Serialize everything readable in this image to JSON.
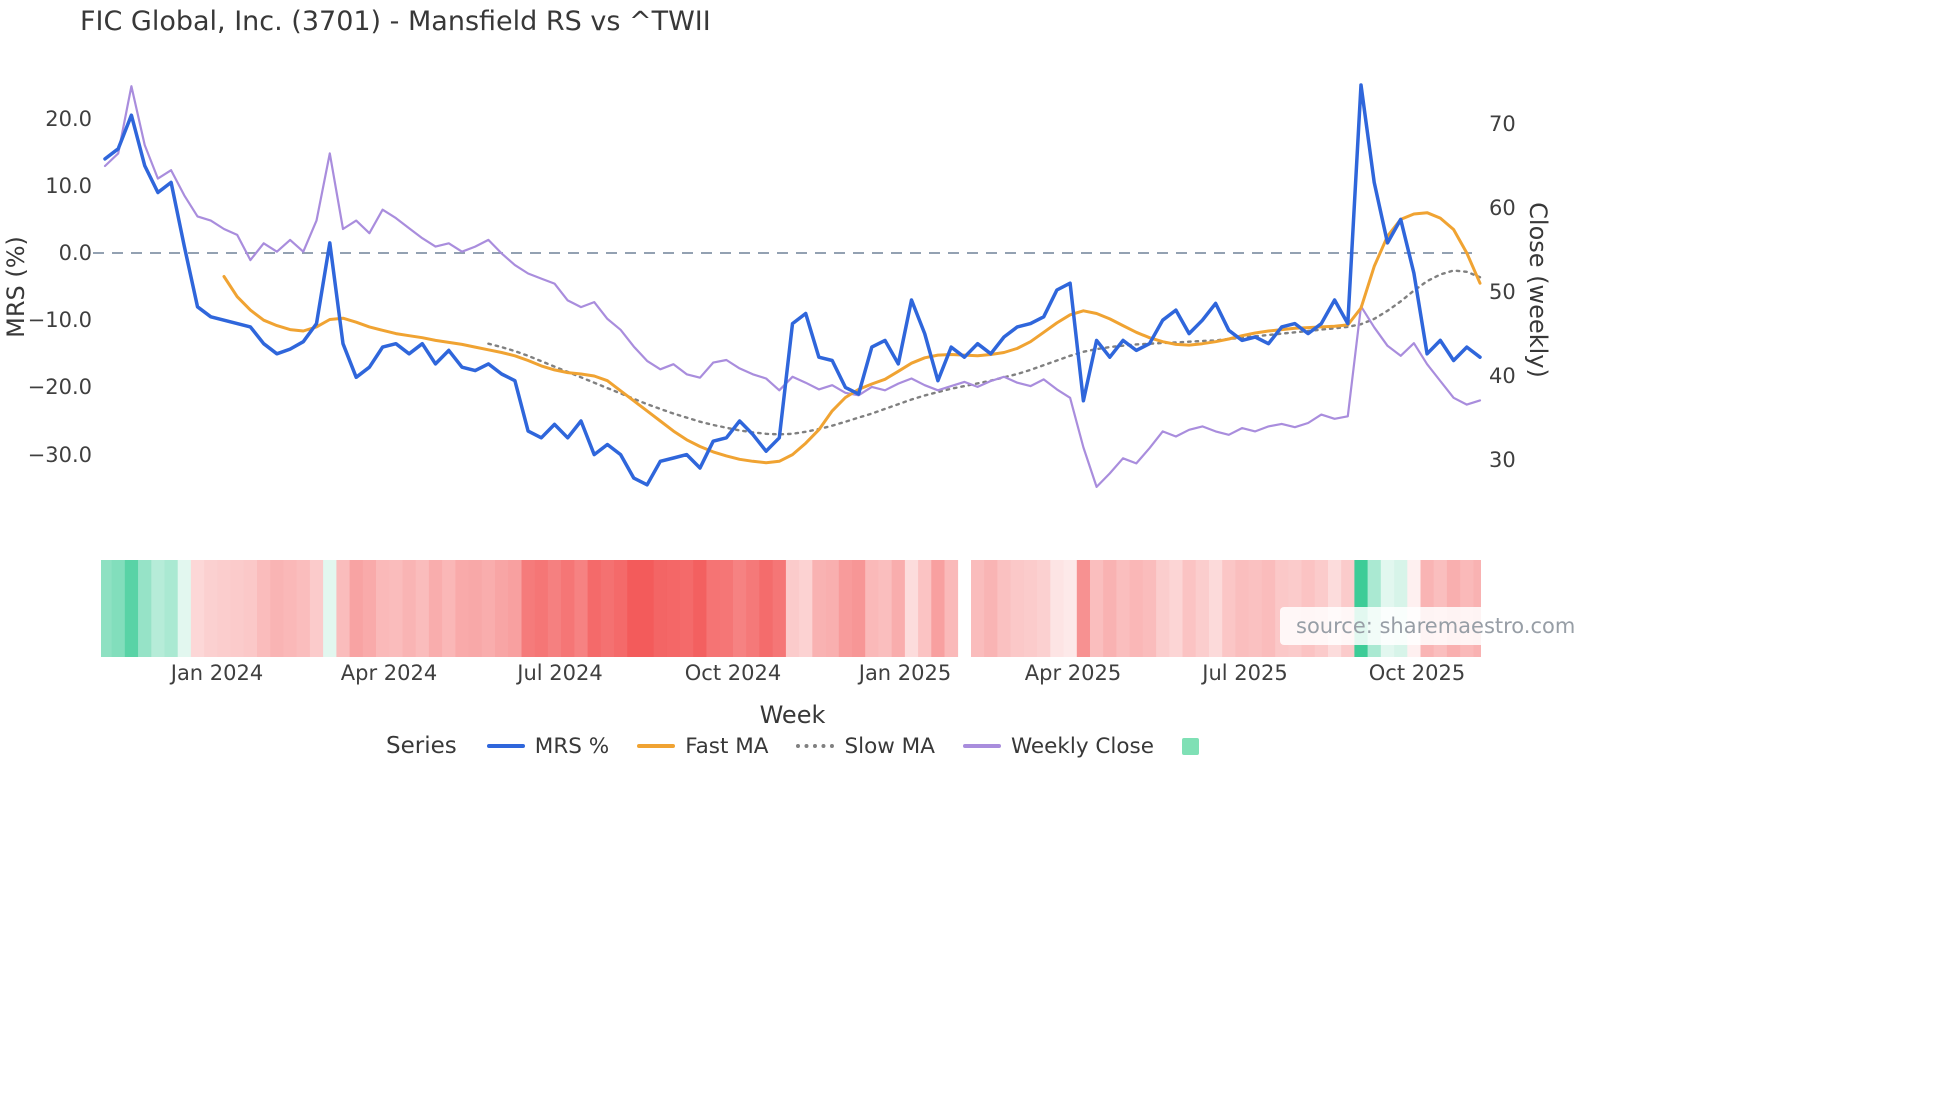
{
  "title": "FIC Global, Inc. (3701) - Mansfield RS vs ^TWII",
  "watermark": "source: sharemaestro.com",
  "axes": {
    "left_label": "MRS (%)",
    "right_label": "Close (weekly)",
    "x_label": "Week",
    "left_ticks": [
      "20.0",
      "10.0",
      "0.0",
      "−10.0",
      "−20.0",
      "−30.0"
    ],
    "right_ticks": [
      "70",
      "60",
      "50",
      "40",
      "30"
    ],
    "x_ticks": [
      "Jan 2024",
      "Apr 2024",
      "Jul 2024",
      "Oct 2024",
      "Jan 2025",
      "Apr 2025",
      "Jul 2025",
      "Oct 2025"
    ]
  },
  "legend": {
    "title": "Series",
    "items": [
      {
        "label": "MRS %",
        "swatch": "line",
        "color": "#2f66db"
      },
      {
        "label": "Fast MA",
        "swatch": "line",
        "color": "#f0a332"
      },
      {
        "label": "Slow MA",
        "swatch": "dotted",
        "color": "#808080"
      },
      {
        "label": "Weekly Close",
        "swatch": "line",
        "color": "#a98ddd"
      },
      {
        "label": "",
        "swatch": "square",
        "color": "#7fe0b5"
      }
    ]
  },
  "chart_data": {
    "type": "line",
    "subtype": "dual-axis weekly lines with MRS heatmap strip",
    "x_unit": "week index (weekly samples, index 0 ≈ early Nov 2023, index 104 ≈ early Nov 2025)",
    "n_points": 105,
    "x_tick_weeks": [
      8.5,
      21.5,
      34.4,
      47.5,
      60.5,
      73.2,
      86.2,
      99.2
    ],
    "x_tick_labels": [
      "Jan 2024",
      "Apr 2024",
      "Jul 2024",
      "Oct 2024",
      "Jan 2025",
      "Apr 2025",
      "Jul 2025",
      "Oct 2025"
    ],
    "left_ylim": [
      -37,
      26
    ],
    "right_ylim": [
      28,
      76
    ],
    "left_tick_values": [
      20,
      10,
      0,
      -10,
      -20,
      -30
    ],
    "right_tick_values": [
      70,
      60,
      50,
      40,
      30
    ],
    "zero_line": {
      "value": 0,
      "style": "dashed",
      "color": "#8494a8"
    },
    "grid": "off",
    "legend_position": "bottom",
    "series": [
      {
        "name": "MRS %",
        "axis": "left",
        "color": "#2f66db",
        "style": "solid",
        "width": 3.5,
        "values": [
          14,
          15.5,
          20.5,
          13,
          9,
          10.5,
          1,
          -8,
          -9.5,
          -10,
          -10.5,
          -11,
          -13.5,
          -15,
          -14.3,
          -13.2,
          -10.5,
          1.5,
          -13.5,
          -18.5,
          -17,
          -14,
          -13.5,
          -15,
          -13.5,
          -16.5,
          -14.5,
          -17,
          -17.5,
          -16.5,
          -18,
          -19,
          -26.5,
          -27.5,
          -25.5,
          -27.5,
          -25,
          -30,
          -28.5,
          -30,
          -33.5,
          -34.5,
          -31,
          -30.5,
          -30,
          -32,
          -28,
          -27.5,
          -25,
          -27,
          -29.5,
          -27.5,
          -10.5,
          -9,
          -15.5,
          -16,
          -20,
          -21,
          -14,
          -13,
          -16.5,
          -7,
          -12,
          -19,
          -14,
          -15.5,
          -13.5,
          -15,
          -12.5,
          -11,
          -10.5,
          -9.5,
          -5.5,
          -4.5,
          -22,
          -13,
          -15.5,
          -13,
          -14.5,
          -13.5,
          -10,
          -8.5,
          -12,
          -10,
          -7.5,
          -11.5,
          -13,
          -12.5,
          -13.5,
          -11,
          -10.5,
          -12,
          -10.5,
          -7,
          -10.5,
          25,
          10.5,
          1.5,
          5,
          -3,
          -15,
          -13,
          -16,
          -14,
          -15.5
        ]
      },
      {
        "name": "Fast MA",
        "axis": "left",
        "color": "#f0a332",
        "style": "solid",
        "width": 3,
        "values": [
          null,
          null,
          null,
          null,
          null,
          null,
          null,
          null,
          null,
          -3.5,
          -6.5,
          -8.5,
          -10,
          -10.8,
          -11.4,
          -11.6,
          -11,
          -9.9,
          -9.7,
          -10.3,
          -11,
          -11.5,
          -12,
          -12.3,
          -12.6,
          -13,
          -13.3,
          -13.6,
          -14,
          -14.4,
          -14.8,
          -15.3,
          -16,
          -16.8,
          -17.4,
          -17.8,
          -18,
          -18.3,
          -19,
          -20.5,
          -22,
          -23.5,
          -25,
          -26.5,
          -27.8,
          -28.8,
          -29.6,
          -30.2,
          -30.7,
          -31,
          -31.2,
          -31,
          -30,
          -28.3,
          -26.3,
          -23.5,
          -21.5,
          -20.3,
          -19.5,
          -18.8,
          -17.6,
          -16.4,
          -15.6,
          -15.2,
          -15.1,
          -15.2,
          -15.3,
          -15.1,
          -14.8,
          -14.2,
          -13.2,
          -11.8,
          -10.4,
          -9.2,
          -8.6,
          -9,
          -9.8,
          -10.8,
          -11.8,
          -12.6,
          -13.2,
          -13.6,
          -13.7,
          -13.5,
          -13.2,
          -12.8,
          -12.3,
          -11.9,
          -11.6,
          -11.4,
          -11.2,
          -11.1,
          -11,
          -10.9,
          -10.7,
          -8.2,
          -2,
          2.5,
          5,
          5.8,
          6,
          5.2,
          3.5,
          0,
          -4.5
        ]
      },
      {
        "name": "Slow MA",
        "axis": "left",
        "color": "#808080",
        "style": "dotted",
        "width": 2.4,
        "values": [
          null,
          null,
          null,
          null,
          null,
          null,
          null,
          null,
          null,
          null,
          null,
          null,
          null,
          null,
          null,
          null,
          null,
          null,
          null,
          null,
          null,
          null,
          null,
          null,
          null,
          null,
          null,
          null,
          null,
          -13.5,
          -14,
          -14.6,
          -15.3,
          -16.1,
          -16.9,
          -17.7,
          -18.5,
          -19.3,
          -20.1,
          -20.9,
          -21.7,
          -22.5,
          -23.2,
          -23.9,
          -24.5,
          -25.1,
          -25.6,
          -26,
          -26.4,
          -26.7,
          -26.9,
          -27,
          -26.9,
          -26.6,
          -26.2,
          -25.7,
          -25.1,
          -24.5,
          -23.9,
          -23.2,
          -22.5,
          -21.8,
          -21.2,
          -20.7,
          -20.2,
          -19.8,
          -19.4,
          -19,
          -18.5,
          -18,
          -17.4,
          -16.7,
          -16,
          -15.3,
          -14.7,
          -14.3,
          -14,
          -13.8,
          -13.6,
          -13.5,
          -13.4,
          -13.3,
          -13.2,
          -13.1,
          -13,
          -12.8,
          -12.6,
          -12.4,
          -12.2,
          -12,
          -11.8,
          -11.6,
          -11.4,
          -11.2,
          -11,
          -10.6,
          -9.8,
          -8.6,
          -7.2,
          -5.6,
          -4.2,
          -3.2,
          -2.6,
          -2.8,
          -3.6
        ]
      },
      {
        "name": "Weekly Close",
        "axis": "right",
        "color": "#a98ddd",
        "style": "solid",
        "width": 2.2,
        "values": [
          65,
          66.5,
          74.5,
          67.5,
          63.5,
          64.5,
          61.5,
          59,
          58.5,
          57.5,
          56.8,
          53.8,
          55.8,
          54.8,
          56.2,
          54.8,
          58.5,
          66.5,
          57.5,
          58.5,
          57,
          59.8,
          58.8,
          57.6,
          56.4,
          55.4,
          55.8,
          54.8,
          55.4,
          56.2,
          54.6,
          53.2,
          52.2,
          51.6,
          51,
          49,
          48.2,
          48.8,
          46.8,
          45.5,
          43.5,
          41.8,
          40.8,
          41.4,
          40.2,
          39.8,
          41.6,
          41.9,
          40.9,
          40.2,
          39.7,
          38.3,
          39.9,
          39.2,
          38.4,
          38.9,
          38,
          37.7,
          38.7,
          38.3,
          39.1,
          39.7,
          38.9,
          38.3,
          38.8,
          39.3,
          38.7,
          39.4,
          39.9,
          39.2,
          38.8,
          39.6,
          38.4,
          37.4,
          31.5,
          26.8,
          28.4,
          30.2,
          29.6,
          31.4,
          33.4,
          32.8,
          33.6,
          34,
          33.4,
          33,
          33.8,
          33.4,
          34,
          34.3,
          33.9,
          34.4,
          35.4,
          34.9,
          35.2,
          48.3,
          45.8,
          43.6,
          42.4,
          43.9,
          41.4,
          39.4,
          37.4,
          36.6,
          37.1
        ]
      }
    ],
    "heatmap": {
      "source_series": "MRS %",
      "description": "weekly strip colored by MRS value: green = positive, red = negative, intensity by magnitude",
      "missing_weeks": [
        65
      ],
      "positive_rgb": [
        61,
        204,
        151
      ],
      "negative_rgb": [
        242,
        82,
        82
      ]
    }
  }
}
